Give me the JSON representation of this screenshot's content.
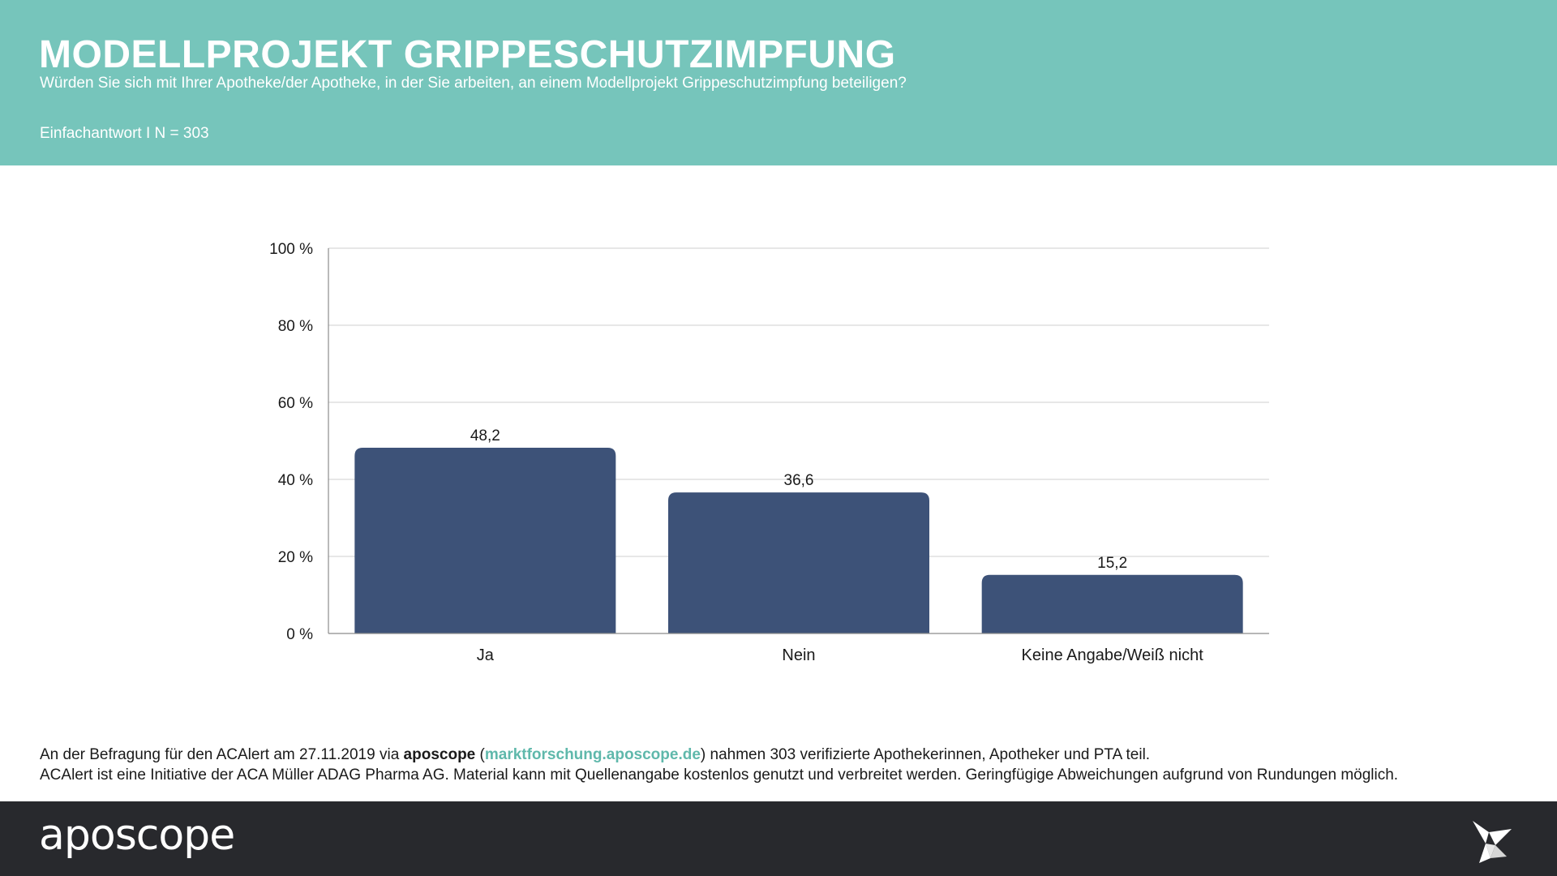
{
  "header": {
    "title": "MODELLPROJEKT GRIPPESCHUTZIMPFUNG",
    "subtitle": "Würden Sie sich mit Ihrer Apotheke/der Apotheke, in der Sie arbeiten, an einem Modellprojekt Grippeschutzimpfung beteiligen?",
    "note": "Einfachantwort I N = 303"
  },
  "colors": {
    "header_bg": "#76c5bb",
    "bar": "#3d5278",
    "footer_bg": "#28292d",
    "link": "#5fb8ab"
  },
  "chart_data": {
    "type": "bar",
    "categories": [
      "Ja",
      "Nein",
      "Keine Angabe/Weiß nicht"
    ],
    "values": [
      48.2,
      36.6,
      15.2
    ],
    "value_labels": [
      "48,2",
      "36,6",
      "15,2"
    ],
    "title": "",
    "xlabel": "",
    "ylabel": "",
    "ylim": [
      0,
      100
    ],
    "y_ticks": [
      0,
      20,
      40,
      60,
      80,
      100
    ],
    "y_tick_labels": [
      "0 %",
      "20 %",
      "40 %",
      "60 %",
      "80 %",
      "100 %"
    ],
    "grid": true,
    "legend": "none"
  },
  "footnote": {
    "line1_pre": "An der Befragung für den ACAlert am 27.11.2019 via ",
    "line1_brand": "aposcope",
    "line1_paren_open": " (",
    "line1_link": "marktforschung.aposcope.de",
    "line1_post": ") nahmen 303 verifizierte Apothekerinnen, Apotheker und PTA teil.",
    "line2": "ACAlert ist eine Initiative der ACA Müller ADAG Pharma AG. Material kann mit Quellenangabe kostenlos genutzt und verbreitet werden. Geringfügige Abweichungen aufgrund von Rundungen möglich."
  },
  "footer": {
    "brand": "aposcope",
    "icon": "paper-crane-icon"
  }
}
